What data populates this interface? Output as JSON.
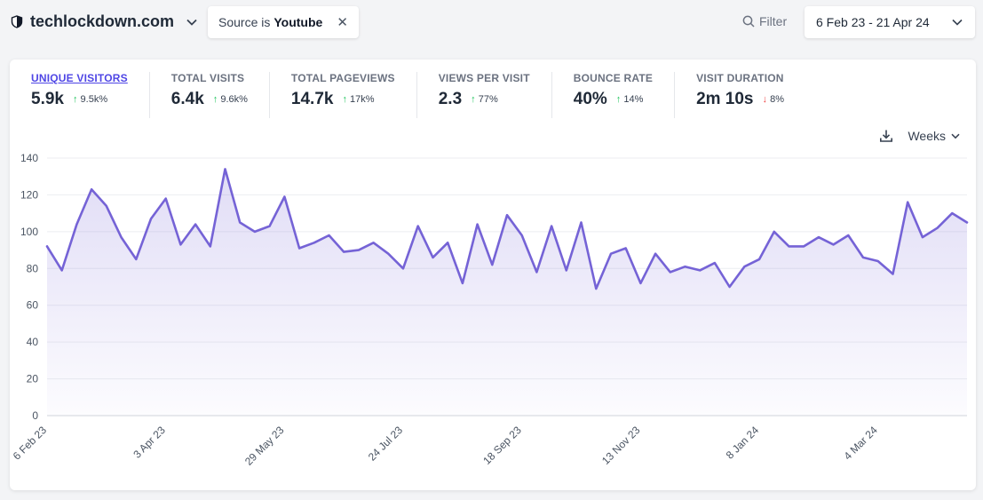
{
  "header": {
    "site_name": "techlockdown.com",
    "filter_pill": {
      "prefix": "Source is",
      "value": "Youtube"
    },
    "filter_label": "Filter",
    "date_range": "6 Feb 23 - 21 Apr 24"
  },
  "stats": [
    {
      "label": "UNIQUE VISITORS",
      "value": "5.9k",
      "change": "9.5k%",
      "direction": "up",
      "active": true
    },
    {
      "label": "TOTAL VISITS",
      "value": "6.4k",
      "change": "9.6k%",
      "direction": "up",
      "active": false
    },
    {
      "label": "TOTAL PAGEVIEWS",
      "value": "14.7k",
      "change": "17k%",
      "direction": "up",
      "active": false
    },
    {
      "label": "VIEWS PER VISIT",
      "value": "2.3",
      "change": "77%",
      "direction": "up",
      "active": false
    },
    {
      "label": "BOUNCE RATE",
      "value": "40%",
      "change": "14%",
      "direction": "up",
      "active": false
    },
    {
      "label": "VISIT DURATION",
      "value": "2m 10s",
      "change": "8%",
      "direction": "down",
      "active": false
    }
  ],
  "chart_controls": {
    "interval": "Weeks"
  },
  "colors": {
    "accent": "#4f46e5",
    "line": "#7563d6",
    "up": "#22c55e",
    "down": "#ef4444"
  },
  "chart_data": {
    "type": "line",
    "title": "",
    "xlabel": "",
    "ylabel": "",
    "ylim": [
      0,
      140
    ],
    "yticks": [
      0,
      20,
      40,
      60,
      80,
      100,
      120,
      140
    ],
    "grid": true,
    "xtick_labels": [
      {
        "label": "6 Feb 23",
        "index": 0
      },
      {
        "label": "3 Apr 23",
        "index": 8
      },
      {
        "label": "29 May 23",
        "index": 16
      },
      {
        "label": "24 Jul 23",
        "index": 24
      },
      {
        "label": "18 Sep 23",
        "index": 32
      },
      {
        "label": "13 Nov 23",
        "index": 40
      },
      {
        "label": "8 Jan 24",
        "index": 48
      },
      {
        "label": "4 Mar 24",
        "index": 56
      }
    ],
    "series": [
      {
        "values": [
          92,
          79,
          104,
          123,
          114,
          97,
          85,
          107,
          118,
          93,
          104,
          92,
          134,
          105,
          100,
          103,
          119,
          91,
          94,
          98,
          89,
          90,
          94,
          88,
          80,
          103,
          86,
          94,
          72,
          104,
          82,
          109,
          98,
          78,
          103,
          79,
          105,
          69,
          88,
          91,
          72,
          88,
          78,
          81,
          79,
          83,
          70,
          81,
          85,
          100,
          92,
          92,
          97,
          93,
          98,
          86,
          84,
          77,
          116,
          97,
          102,
          110,
          105
        ]
      }
    ]
  }
}
